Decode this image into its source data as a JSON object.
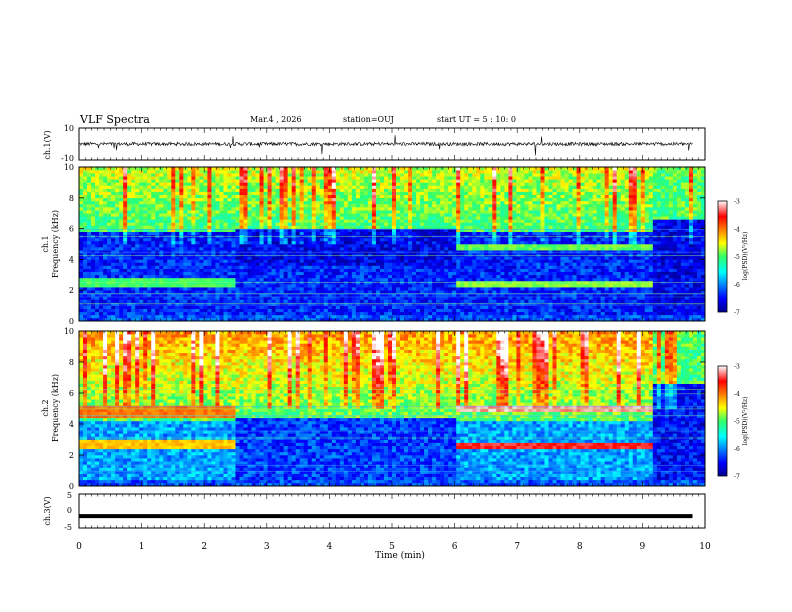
{
  "header": {
    "title": "VLF Spectra",
    "date": "Mar.4 , 2026",
    "station": "station=OUJ",
    "start": "start UT =  5 : 10: 0"
  },
  "chart_data": [
    {
      "type": "line",
      "panel": "ch1-waveform",
      "ylabel": "ch.1(V)",
      "xlim": [
        0,
        10
      ],
      "ylim": [
        -10,
        10
      ],
      "yticks": [
        "10",
        "-10"
      ],
      "baseline_mean": 0,
      "description_level": "noisy trace with spikes"
    },
    {
      "type": "heatmap",
      "panel": "ch1-spectrogram",
      "ylabel": "ch.1 Frequency (kHz)",
      "xlim": [
        0,
        10
      ],
      "ylim": [
        0,
        10
      ],
      "yticks": [
        "0",
        "2",
        "4",
        "6",
        "8",
        "10"
      ],
      "colorbar": {
        "label": "log(PSD)(V²/Hz)",
        "range": [
          -7,
          -3
        ],
        "ticks": [
          "-3",
          "-4",
          "-5",
          "-6",
          "-7"
        ]
      },
      "emission_bands": [
        {
          "t_start": 0,
          "t_end": 2.5,
          "f_low": 2.3,
          "f_high": 2.7,
          "level": -5.0
        },
        {
          "t_start": 6.0,
          "t_end": 9.15,
          "f_low": 2.2,
          "f_high": 2.6,
          "level": -4.8
        },
        {
          "t_start": 6.0,
          "t_end": 9.15,
          "f_low": 4.6,
          "f_high": 5.0,
          "level": -4.9
        }
      ]
    },
    {
      "type": "heatmap",
      "panel": "ch2-spectrogram",
      "ylabel": "ch.2 Frequency (kHz)",
      "xlim": [
        0,
        10
      ],
      "ylim": [
        0,
        10
      ],
      "yticks": [
        "0",
        "2",
        "4",
        "6",
        "8",
        "10"
      ],
      "colorbar": {
        "label": "log(PSD)(V²/Hz)",
        "range": [
          -7,
          -3
        ],
        "ticks": [
          "-3",
          "-4",
          "-5",
          "-6",
          "-7"
        ]
      },
      "emission_bands": [
        {
          "t_start": 0,
          "t_end": 2.5,
          "f_low": 4.5,
          "f_high": 5.2,
          "level": -4.0
        },
        {
          "t_start": 0,
          "t_end": 2.5,
          "f_low": 2.4,
          "f_high": 3.0,
          "level": -4.3
        },
        {
          "t_start": 6.0,
          "t_end": 9.15,
          "f_low": 4.8,
          "f_high": 5.2,
          "level": -3.2
        },
        {
          "t_start": 6.0,
          "t_end": 9.15,
          "f_low": 2.4,
          "f_high": 2.7,
          "level": -3.5
        }
      ]
    },
    {
      "type": "line",
      "panel": "ch3-waveform",
      "ylabel": "ch.3(V)",
      "xlim": [
        0,
        10
      ],
      "ylim": [
        -5,
        5
      ],
      "yticks": [
        "5",
        "0",
        "-5"
      ],
      "baseline_mean": -1.5
    }
  ],
  "xaxis": {
    "label": "Time (min)",
    "ticks": [
      "0",
      "1",
      "2",
      "3",
      "4",
      "5",
      "6",
      "7",
      "8",
      "9",
      "10"
    ]
  }
}
